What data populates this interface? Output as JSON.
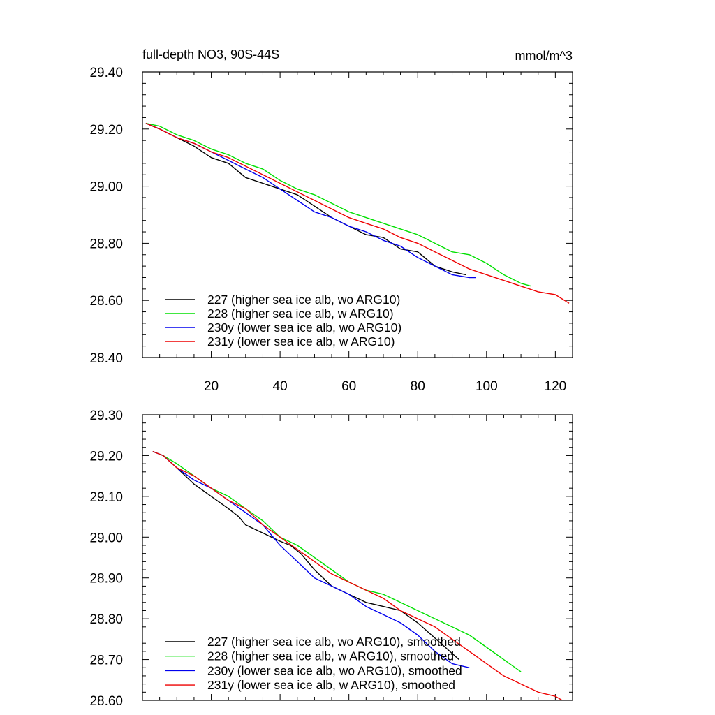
{
  "chart_data": [
    {
      "type": "line",
      "title": "full-depth NO3, 90S-44S",
      "units": "mmol/m^3",
      "xlim": [
        0,
        125
      ],
      "ylim": [
        28.4,
        29.4
      ],
      "x_ticks": [
        20,
        40,
        60,
        80,
        100,
        120
      ],
      "x_tick_labels": [
        "20",
        "40",
        "60",
        "80",
        "100",
        "120"
      ],
      "y_ticks": [
        28.4,
        28.6,
        28.8,
        29.0,
        29.2,
        29.4
      ],
      "y_tick_labels": [
        "28.40",
        "28.60",
        "28.80",
        "29.00",
        "29.20",
        "29.40"
      ],
      "legend_position": "bottom-left",
      "series": [
        {
          "name": "227 (higher sea ice alb, wo ARG10)",
          "color": "#000000",
          "x": [
            1,
            5,
            10,
            15,
            20,
            25,
            30,
            35,
            40,
            45,
            50,
            55,
            60,
            65,
            70,
            75,
            80,
            85,
            90,
            94
          ],
          "y": [
            29.22,
            29.2,
            29.17,
            29.14,
            29.1,
            29.08,
            29.03,
            29.01,
            28.99,
            28.97,
            28.93,
            28.89,
            28.86,
            28.83,
            28.82,
            28.78,
            28.77,
            28.72,
            28.7,
            28.69
          ]
        },
        {
          "name": "228 (higher sea ice alb, w ARG10)",
          "color": "#00e000",
          "x": [
            1,
            5,
            10,
            15,
            20,
            25,
            30,
            35,
            40,
            45,
            50,
            55,
            60,
            65,
            70,
            75,
            80,
            85,
            90,
            95,
            100,
            105,
            110,
            113
          ],
          "y": [
            29.22,
            29.21,
            29.18,
            29.16,
            29.13,
            29.11,
            29.08,
            29.06,
            29.02,
            28.99,
            28.97,
            28.94,
            28.91,
            28.89,
            28.87,
            28.85,
            28.83,
            28.8,
            28.77,
            28.76,
            28.73,
            28.69,
            28.66,
            28.65
          ]
        },
        {
          "name": "230y (lower sea ice alb, wo ARG10)",
          "color": "#0000ee",
          "x": [
            1,
            5,
            10,
            15,
            20,
            25,
            30,
            35,
            40,
            45,
            50,
            55,
            60,
            65,
            70,
            75,
            80,
            85,
            90,
            95,
            97
          ],
          "y": [
            29.22,
            29.2,
            29.17,
            29.15,
            29.12,
            29.09,
            29.06,
            29.03,
            28.99,
            28.95,
            28.91,
            28.89,
            28.86,
            28.84,
            28.81,
            28.79,
            28.75,
            28.72,
            28.69,
            28.68,
            28.68
          ]
        },
        {
          "name": "231y (lower sea ice alb, w ARG10)",
          "color": "#ee0000",
          "x": [
            1,
            5,
            10,
            15,
            20,
            25,
            30,
            35,
            40,
            45,
            50,
            55,
            60,
            65,
            70,
            75,
            80,
            85,
            90,
            95,
            100,
            105,
            110,
            115,
            120,
            124
          ],
          "y": [
            29.22,
            29.2,
            29.17,
            29.15,
            29.12,
            29.1,
            29.07,
            29.04,
            29.01,
            28.98,
            28.95,
            28.92,
            28.89,
            28.87,
            28.85,
            28.82,
            28.8,
            28.77,
            28.74,
            28.71,
            28.69,
            28.67,
            28.65,
            28.63,
            28.62,
            28.59
          ]
        }
      ]
    },
    {
      "type": "line",
      "title": "",
      "xlim": [
        0,
        125
      ],
      "ylim": [
        28.6,
        29.3
      ],
      "x_ticks": [
        20,
        40,
        60,
        80,
        100,
        120
      ],
      "y_ticks": [
        28.6,
        28.7,
        28.8,
        28.9,
        29.0,
        29.1,
        29.2,
        29.3
      ],
      "y_tick_labels": [
        "28.60",
        "28.70",
        "28.80",
        "28.90",
        "29.00",
        "29.10",
        "29.20",
        "29.30"
      ],
      "legend_position": "bottom-left",
      "series": [
        {
          "name": "227 (higher sea ice alb, wo ARG10), smoothed",
          "color": "#000000",
          "x": [
            3,
            6,
            10,
            15,
            20,
            25,
            28,
            30,
            35,
            40,
            43,
            46,
            50,
            55,
            60,
            65,
            70,
            75,
            80,
            84,
            88,
            92
          ],
          "y": [
            29.21,
            29.2,
            29.17,
            29.13,
            29.1,
            29.07,
            29.05,
            29.03,
            29.01,
            28.99,
            28.98,
            28.96,
            28.92,
            28.88,
            28.86,
            28.84,
            28.83,
            28.82,
            28.79,
            28.76,
            28.73,
            28.7
          ]
        },
        {
          "name": "228 (higher sea ice alb, w ARG10), smoothed",
          "color": "#00e000",
          "x": [
            3,
            6,
            10,
            15,
            20,
            25,
            30,
            35,
            40,
            45,
            50,
            55,
            60,
            65,
            70,
            75,
            80,
            85,
            90,
            95,
            100,
            105,
            110
          ],
          "y": [
            29.21,
            29.2,
            29.18,
            29.15,
            29.12,
            29.1,
            29.07,
            29.04,
            29.0,
            28.98,
            28.95,
            28.92,
            28.89,
            28.87,
            28.86,
            28.84,
            28.82,
            28.8,
            28.78,
            28.76,
            28.73,
            28.7,
            28.67
          ]
        },
        {
          "name": "230y (lower sea ice alb, wo ARG10), smoothed",
          "color": "#0000ee",
          "x": [
            3,
            6,
            10,
            15,
            20,
            25,
            30,
            35,
            40,
            45,
            50,
            55,
            60,
            65,
            70,
            75,
            80,
            85,
            90,
            95
          ],
          "y": [
            29.21,
            29.2,
            29.17,
            29.14,
            29.12,
            29.09,
            29.06,
            29.03,
            28.98,
            28.94,
            28.9,
            28.88,
            28.86,
            28.83,
            28.81,
            28.79,
            28.76,
            28.72,
            28.69,
            28.68
          ]
        },
        {
          "name": "231y (lower sea ice alb, w ARG10), smoothed",
          "color": "#ee0000",
          "x": [
            3,
            6,
            10,
            15,
            20,
            25,
            30,
            35,
            40,
            45,
            50,
            55,
            60,
            65,
            70,
            75,
            80,
            85,
            90,
            95,
            100,
            105,
            110,
            115,
            120,
            122
          ],
          "y": [
            29.21,
            29.2,
            29.17,
            29.15,
            29.12,
            29.09,
            29.07,
            29.03,
            29.0,
            28.97,
            28.94,
            28.91,
            28.89,
            28.87,
            28.85,
            28.82,
            28.8,
            28.78,
            28.75,
            28.72,
            28.69,
            28.66,
            28.64,
            28.62,
            28.61,
            28.6
          ]
        }
      ]
    }
  ]
}
